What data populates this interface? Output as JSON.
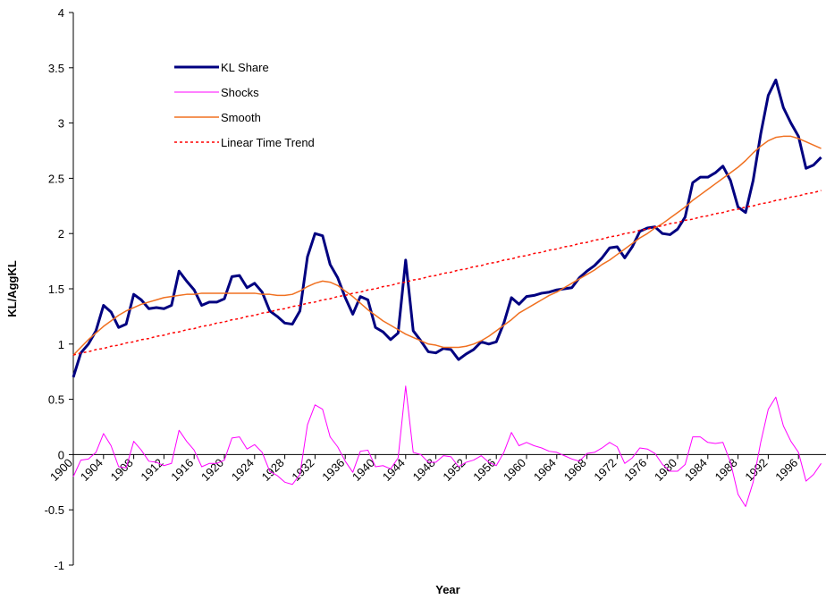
{
  "chart_data": {
    "type": "line",
    "xlabel": "Year",
    "ylabel": "KL/AggKL",
    "categories": [
      "1900",
      null,
      null,
      null,
      "1904",
      null,
      null,
      null,
      "1908",
      null,
      null,
      null,
      "1912",
      null,
      null,
      null,
      "1916",
      null,
      null,
      null,
      "1920",
      null,
      null,
      null,
      "1924",
      null,
      null,
      null,
      "1928",
      null,
      null,
      null,
      "1932",
      null,
      null,
      null,
      "1936",
      null,
      null,
      null,
      "1940",
      null,
      null,
      null,
      "1944",
      null,
      null,
      null,
      "1948",
      null,
      null,
      null,
      "1952",
      null,
      null,
      null,
      "1956",
      null,
      null,
      null,
      "1960",
      null,
      null,
      null,
      "1964",
      null,
      null,
      null,
      "1968",
      null,
      null,
      null,
      "1972",
      null,
      null,
      null,
      "1976",
      null,
      null,
      null,
      "1980",
      null,
      null,
      null,
      "1984",
      null,
      null,
      null,
      "1988",
      null,
      null,
      null,
      "1992",
      null,
      null,
      null,
      "1996",
      null,
      null,
      null
    ],
    "ylim": [
      -1,
      4
    ],
    "yticks": [
      -1,
      -0.5,
      0,
      0.5,
      1,
      1.5,
      2,
      2.5,
      3,
      3.5,
      4
    ],
    "series": [
      {
        "name": "KL Share",
        "color": "#000080",
        "width": 3,
        "dash": "solid",
        "values": [
          0.7,
          0.92,
          1.0,
          1.12,
          1.35,
          1.29,
          1.15,
          1.18,
          1.45,
          1.4,
          1.32,
          1.33,
          1.32,
          1.35,
          1.66,
          1.57,
          1.49,
          1.35,
          1.38,
          1.38,
          1.41,
          1.61,
          1.62,
          1.51,
          1.55,
          1.47,
          1.3,
          1.25,
          1.19,
          1.18,
          1.3,
          1.79,
          2.0,
          1.98,
          1.72,
          1.6,
          1.42,
          1.27,
          1.43,
          1.4,
          1.15,
          1.11,
          1.04,
          1.1,
          1.76,
          1.12,
          1.03,
          0.93,
          0.92,
          0.96,
          0.95,
          0.86,
          0.91,
          0.95,
          1.02,
          1.0,
          1.02,
          1.19,
          1.42,
          1.36,
          1.43,
          1.44,
          1.46,
          1.47,
          1.49,
          1.5,
          1.51,
          1.6,
          1.66,
          1.71,
          1.78,
          1.87,
          1.88,
          1.78,
          1.88,
          2.02,
          2.05,
          2.06,
          2.0,
          1.99,
          2.04,
          2.15,
          2.46,
          2.51,
          2.51,
          2.55,
          2.61,
          2.48,
          2.24,
          2.19,
          2.48,
          2.9,
          3.25,
          3.39,
          3.14,
          3.0,
          2.88,
          2.59,
          2.62,
          2.69
        ]
      },
      {
        "name": "Shocks",
        "color": "#ff00ff",
        "width": 1,
        "dash": "solid",
        "values": [
          -0.2,
          -0.05,
          -0.04,
          0.02,
          0.19,
          0.08,
          -0.11,
          -0.12,
          0.12,
          0.04,
          -0.06,
          -0.07,
          -0.1,
          -0.08,
          0.22,
          0.12,
          0.04,
          -0.11,
          -0.08,
          -0.08,
          -0.05,
          0.15,
          0.16,
          0.05,
          0.09,
          0.02,
          -0.15,
          -0.19,
          -0.25,
          -0.27,
          -0.18,
          0.27,
          0.45,
          0.41,
          0.16,
          0.07,
          -0.06,
          -0.16,
          0.03,
          0.04,
          -0.11,
          -0.1,
          -0.13,
          -0.03,
          0.62,
          0.02,
          0.0,
          -0.07,
          -0.07,
          -0.01,
          -0.02,
          -0.11,
          -0.07,
          -0.05,
          -0.01,
          -0.07,
          -0.1,
          0.02,
          0.2,
          0.08,
          0.11,
          0.08,
          0.06,
          0.03,
          0.02,
          -0.01,
          -0.04,
          -0.06,
          0.01,
          0.02,
          0.06,
          0.11,
          0.07,
          -0.08,
          -0.03,
          0.06,
          0.05,
          0.01,
          -0.09,
          -0.15,
          -0.15,
          -0.09,
          0.16,
          0.16,
          0.11,
          0.1,
          0.11,
          -0.07,
          -0.36,
          -0.47,
          -0.25,
          0.11,
          0.41,
          0.52,
          0.26,
          0.12,
          0.02,
          -0.24,
          -0.18,
          -0.08
        ]
      },
      {
        "name": "Smooth",
        "color": "#f07020",
        "width": 1.5,
        "dash": "solid",
        "values": [
          0.9,
          0.97,
          1.04,
          1.1,
          1.16,
          1.21,
          1.26,
          1.3,
          1.33,
          1.36,
          1.38,
          1.4,
          1.42,
          1.43,
          1.44,
          1.45,
          1.45,
          1.46,
          1.46,
          1.46,
          1.46,
          1.46,
          1.46,
          1.46,
          1.46,
          1.45,
          1.45,
          1.44,
          1.44,
          1.45,
          1.48,
          1.52,
          1.55,
          1.57,
          1.56,
          1.53,
          1.48,
          1.43,
          1.37,
          1.31,
          1.26,
          1.21,
          1.17,
          1.13,
          1.09,
          1.06,
          1.03,
          1.0,
          0.99,
          0.97,
          0.97,
          0.97,
          0.98,
          1.0,
          1.03,
          1.07,
          1.12,
          1.17,
          1.22,
          1.28,
          1.32,
          1.36,
          1.4,
          1.44,
          1.47,
          1.51,
          1.55,
          1.59,
          1.63,
          1.67,
          1.72,
          1.76,
          1.81,
          1.86,
          1.91,
          1.96,
          2.0,
          2.05,
          2.09,
          2.14,
          2.19,
          2.24,
          2.3,
          2.35,
          2.4,
          2.45,
          2.5,
          2.55,
          2.6,
          2.66,
          2.73,
          2.79,
          2.84,
          2.87,
          2.88,
          2.88,
          2.86,
          2.83,
          2.8,
          2.77
        ]
      },
      {
        "name": "Linear Time Trend",
        "color": "#ff0000",
        "width": 1.5,
        "dash": "dotted",
        "values": [
          0.9,
          0.92,
          0.93,
          0.95,
          0.96,
          0.98,
          0.99,
          1.01,
          1.02,
          1.04,
          1.05,
          1.07,
          1.08,
          1.1,
          1.11,
          1.13,
          1.14,
          1.16,
          1.17,
          1.19,
          1.2,
          1.22,
          1.23,
          1.25,
          1.26,
          1.28,
          1.29,
          1.31,
          1.32,
          1.34,
          1.35,
          1.37,
          1.38,
          1.4,
          1.41,
          1.43,
          1.44,
          1.46,
          1.47,
          1.49,
          1.5,
          1.52,
          1.53,
          1.55,
          1.56,
          1.58,
          1.59,
          1.61,
          1.62,
          1.64,
          1.65,
          1.67,
          1.68,
          1.7,
          1.71,
          1.73,
          1.74,
          1.76,
          1.77,
          1.79,
          1.8,
          1.82,
          1.83,
          1.85,
          1.86,
          1.88,
          1.89,
          1.91,
          1.92,
          1.94,
          1.95,
          1.97,
          1.98,
          2.0,
          2.01,
          2.03,
          2.04,
          2.06,
          2.07,
          2.09,
          2.1,
          2.12,
          2.13,
          2.15,
          2.16,
          2.18,
          2.19,
          2.21,
          2.22,
          2.24,
          2.25,
          2.27,
          2.28,
          2.3,
          2.31,
          2.33,
          2.34,
          2.36,
          2.37,
          2.39
        ]
      }
    ]
  }
}
